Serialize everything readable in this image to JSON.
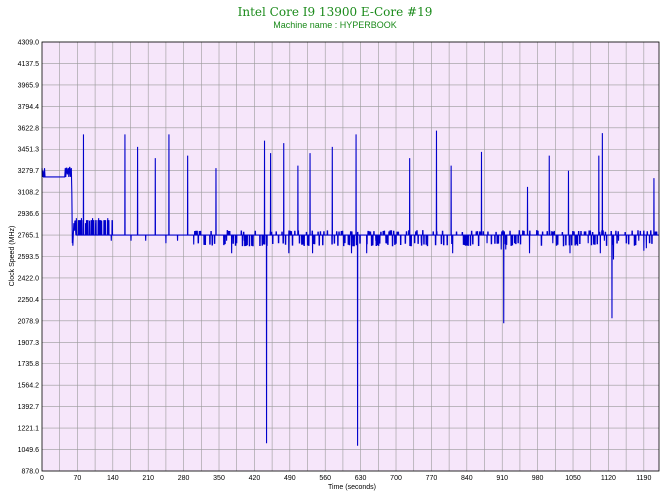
{
  "chart_data": {
    "type": "line",
    "title": "Intel Core I9 13900 E-Core #19",
    "subtitle": "Machine name : HYPERBOOK",
    "xlabel": "Time (seconds)",
    "ylabel": "Clock Speed (MHz)",
    "xlim": [
      0,
      1220
    ],
    "ylim": [
      878.0,
      4309.0
    ],
    "x_ticks": [
      0,
      70,
      140,
      210,
      280,
      350,
      420,
      490,
      560,
      630,
      700,
      770,
      840,
      910,
      980,
      1050,
      1120,
      1190
    ],
    "y_ticks": [
      878.0,
      1049.6,
      1221.1,
      1392.7,
      1564.2,
      1735.8,
      1907.3,
      2078.9,
      2250.4,
      2422.0,
      2593.5,
      2765.1,
      2936.6,
      3108.2,
      3279.7,
      3451.3,
      3622.8,
      3794.4,
      3965.9,
      4137.5,
      4309.0
    ],
    "grid": true,
    "line_color": "#0000cc",
    "plot_background": "#f6e6fa",
    "grid_color": "#9a9a9a",
    "title_color": "#1a8a1a",
    "series": [
      {
        "baseline": 2765,
        "segments": [
          {
            "x": [
              0,
              1,
              2,
              3,
              4,
              5,
              6,
              7,
              8,
              10,
              15,
              20,
              30,
              40,
              45,
              46,
              47,
              48,
              49,
              50,
              52,
              53,
              54,
              55,
              56,
              57,
              58
            ],
            "y": [
              3300,
              3230,
              3280,
              3230,
              3230,
              3300,
              3230,
              3230,
              3230,
              3230,
              3230,
              3230,
              3230,
              3230,
              3230,
              3300,
              3230,
              3300,
              3300,
              3250,
              3300,
              3230,
              3300,
              3310,
              3230,
              3280,
              3300
            ]
          },
          {
            "x": [
              59,
              60,
              60.5,
              61,
              62,
              63,
              64,
              65,
              66
            ],
            "y": [
              3100,
              2700,
              2780,
              2680,
              2780,
              2860,
              2800,
              2880,
              2830
            ]
          }
        ],
        "spikes": [
          {
            "x": 68,
            "y": 2900
          },
          {
            "x": 72,
            "y": 2880
          },
          {
            "x": 78,
            "y": 2900
          },
          {
            "x": 82,
            "y": 3570
          },
          {
            "x": 86,
            "y": 2860
          },
          {
            "x": 94,
            "y": 2880
          },
          {
            "x": 100,
            "y": 2900
          },
          {
            "x": 106,
            "y": 2860
          },
          {
            "x": 112,
            "y": 2900
          },
          {
            "x": 118,
            "y": 2880
          },
          {
            "x": 124,
            "y": 2870
          },
          {
            "x": 130,
            "y": 2900
          },
          {
            "x": 137,
            "y": 2720
          },
          {
            "x": 164,
            "y": 3570
          },
          {
            "x": 176,
            "y": 2720
          },
          {
            "x": 189,
            "y": 3470
          },
          {
            "x": 205,
            "y": 2720
          },
          {
            "x": 224,
            "y": 3380
          },
          {
            "x": 245,
            "y": 2700
          },
          {
            "x": 251,
            "y": 3570
          },
          {
            "x": 268,
            "y": 2720
          },
          {
            "x": 288,
            "y": 3400
          },
          {
            "x": 300,
            "y": 2690
          },
          {
            "x": 344,
            "y": 3300
          },
          {
            "x": 365,
            "y": 2720
          },
          {
            "x": 375,
            "y": 2620
          },
          {
            "x": 385,
            "y": 2700
          },
          {
            "x": 400,
            "y": 2720
          },
          {
            "x": 440,
            "y": 3520
          },
          {
            "x": 444,
            "y": 1100
          },
          {
            "x": 452,
            "y": 3420
          },
          {
            "x": 478,
            "y": 3500
          },
          {
            "x": 488,
            "y": 2620
          },
          {
            "x": 506,
            "y": 3320
          },
          {
            "x": 530,
            "y": 3420
          },
          {
            "x": 535,
            "y": 2620
          },
          {
            "x": 574,
            "y": 3470
          },
          {
            "x": 612,
            "y": 2620
          },
          {
            "x": 621,
            "y": 3570
          },
          {
            "x": 624,
            "y": 1080
          },
          {
            "x": 642,
            "y": 2620
          },
          {
            "x": 660,
            "y": 2720
          },
          {
            "x": 680,
            "y": 2700
          },
          {
            "x": 700,
            "y": 2720
          },
          {
            "x": 727,
            "y": 3380
          },
          {
            "x": 750,
            "y": 2700
          },
          {
            "x": 780,
            "y": 3600
          },
          {
            "x": 809,
            "y": 3320
          },
          {
            "x": 812,
            "y": 2620
          },
          {
            "x": 838,
            "y": 2700
          },
          {
            "x": 869,
            "y": 3430
          },
          {
            "x": 880,
            "y": 2700
          },
          {
            "x": 900,
            "y": 2720
          },
          {
            "x": 908,
            "y": 2650
          },
          {
            "x": 913,
            "y": 2060
          },
          {
            "x": 917,
            "y": 2650
          },
          {
            "x": 960,
            "y": 3150
          },
          {
            "x": 964,
            "y": 2620
          },
          {
            "x": 1003,
            "y": 3400
          },
          {
            "x": 1010,
            "y": 2700
          },
          {
            "x": 1041,
            "y": 3280
          },
          {
            "x": 1044,
            "y": 2620
          },
          {
            "x": 1080,
            "y": 2700
          },
          {
            "x": 1101,
            "y": 3400
          },
          {
            "x": 1104,
            "y": 2620
          },
          {
            "x": 1108,
            "y": 3580
          },
          {
            "x": 1112,
            "y": 2720
          },
          {
            "x": 1127,
            "y": 2100
          },
          {
            "x": 1130,
            "y": 2570
          },
          {
            "x": 1140,
            "y": 2720
          },
          {
            "x": 1180,
            "y": 2720
          },
          {
            "x": 1190,
            "y": 2640
          },
          {
            "x": 1195,
            "y": 2660
          },
          {
            "x": 1210,
            "y": 3220
          }
        ],
        "noise_band": [
          2680,
          2800
        ],
        "step_after_70_end": 1220
      }
    ]
  }
}
